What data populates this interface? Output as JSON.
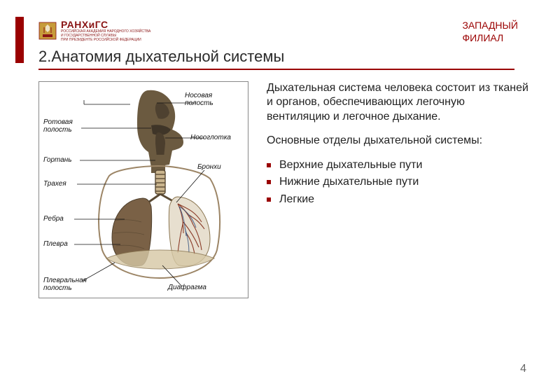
{
  "colors": {
    "accent": "#9a0000",
    "text": "#222222",
    "background": "#ffffff"
  },
  "header": {
    "logo_title": "РАНХиГС",
    "logo_sub1": "РОССИЙСКАЯ АКАДЕМИЯ НАРОДНОГО ХОЗЯЙСТВА",
    "logo_sub2": "И ГОСУДАРСТВЕННОЙ СЛУЖБЫ",
    "logo_sub3": "ПРИ ПРЕЗИДЕНТЕ РОССИЙСКОЙ ФЕДЕРАЦИИ",
    "branch_line1": "ЗАПАДНЫЙ",
    "branch_line2": "ФИЛИАЛ"
  },
  "title": "2.Анатомия дыхательной системы",
  "body": {
    "para1": "Дыхательная система человека состоит из тканей и органов, обеспечивающих легочную вентиляцию и легочное дыхание.",
    "para2": "Основные отделы дыхательной системы:",
    "items": {
      "0": "Верхние дыхательные пути",
      "1": "Нижние дыхательные пути",
      "2": "Легкие"
    }
  },
  "diagram": {
    "labels": {
      "nasal_cavity": "Носовая\nполость",
      "oral_cavity": "Ротовая\nполость",
      "nasopharynx": "Носоглотка",
      "larynx": "Гортань",
      "bronchi": "Бронхи",
      "trachea": "Трахея",
      "ribs": "Ребра",
      "pleura": "Плевра",
      "pleural_cavity": "Плевральная\nполость",
      "diaphragm": "Диафрагма"
    },
    "styling": {
      "border_color": "#888888",
      "font_size": 10,
      "font_style": "italic",
      "line_color": "#111111",
      "head_fill": "#6b5a40",
      "torso_stroke": "#9c8566",
      "lung_fill": "#7a6146",
      "vessel_color": "#8a3b28"
    }
  },
  "page_number": "4"
}
